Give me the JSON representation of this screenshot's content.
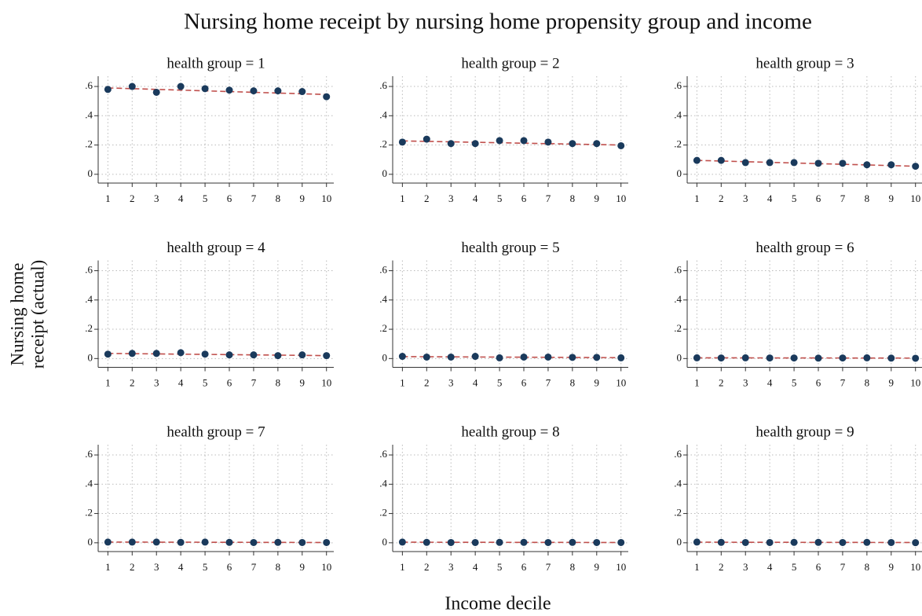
{
  "title": "Nursing home receipt by nursing home propensity group and income",
  "xlabel": "Income decile",
  "ylabel": [
    "Nursing home",
    "receipt (actual)"
  ],
  "chart_data": [
    {
      "type": "scatter",
      "title": "health group = 1",
      "x": [
        1,
        2,
        3,
        4,
        5,
        6,
        7,
        8,
        9,
        10
      ],
      "series": [
        {
          "color": "#1a3a5c",
          "marker": "circle",
          "values": [
            0.58,
            0.6,
            0.56,
            0.6,
            0.585,
            0.575,
            0.57,
            0.57,
            0.565,
            0.53
          ]
        },
        {
          "color": "#c0504d",
          "line": "dashed",
          "x": [
            1,
            10
          ],
          "values": [
            0.59,
            0.545
          ]
        }
      ],
      "xlim": [
        0.6,
        10.3
      ],
      "ylim": [
        -0.06,
        0.67
      ],
      "xticks": [
        1,
        2,
        3,
        4,
        5,
        6,
        7,
        8,
        9,
        10
      ],
      "yticks": [
        0,
        {
          "value": 0.2,
          "label": ".2"
        },
        {
          "value": 0.4,
          "label": ".4"
        },
        {
          "value": 0.6,
          "label": ".6"
        }
      ],
      "grid": true
    },
    {
      "type": "scatter",
      "title": "health group = 2",
      "x": [
        1,
        2,
        3,
        4,
        5,
        6,
        7,
        8,
        9,
        10
      ],
      "series": [
        {
          "color": "#1a3a5c",
          "marker": "circle",
          "values": [
            0.22,
            0.24,
            0.21,
            0.21,
            0.23,
            0.23,
            0.22,
            0.21,
            0.21,
            0.195
          ]
        },
        {
          "color": "#c0504d",
          "line": "dashed",
          "x": [
            1,
            10
          ],
          "values": [
            0.228,
            0.2
          ]
        }
      ],
      "xlim": [
        0.6,
        10.3
      ],
      "ylim": [
        -0.06,
        0.67
      ],
      "xticks": [
        1,
        2,
        3,
        4,
        5,
        6,
        7,
        8,
        9,
        10
      ],
      "yticks": [
        0,
        {
          "value": 0.2,
          "label": ".2"
        },
        {
          "value": 0.4,
          "label": ".4"
        },
        {
          "value": 0.6,
          "label": ".6"
        }
      ],
      "grid": true
    },
    {
      "type": "scatter",
      "title": "health group = 3",
      "x": [
        1,
        2,
        3,
        4,
        5,
        6,
        7,
        8,
        9,
        10
      ],
      "series": [
        {
          "color": "#1a3a5c",
          "marker": "circle",
          "values": [
            0.095,
            0.095,
            0.08,
            0.08,
            0.08,
            0.075,
            0.075,
            0.065,
            0.065,
            0.055
          ]
        },
        {
          "color": "#c0504d",
          "line": "dashed",
          "x": [
            1,
            10
          ],
          "values": [
            0.095,
            0.055
          ]
        }
      ],
      "xlim": [
        0.6,
        10.3
      ],
      "ylim": [
        -0.06,
        0.67
      ],
      "xticks": [
        1,
        2,
        3,
        4,
        5,
        6,
        7,
        8,
        9,
        10
      ],
      "yticks": [
        0,
        {
          "value": 0.2,
          "label": ".2"
        },
        {
          "value": 0.4,
          "label": ".4"
        },
        {
          "value": 0.6,
          "label": ".6"
        }
      ],
      "grid": true
    },
    {
      "type": "scatter",
      "title": "health group = 4",
      "x": [
        1,
        2,
        3,
        4,
        5,
        6,
        7,
        8,
        9,
        10
      ],
      "series": [
        {
          "color": "#1a3a5c",
          "marker": "circle",
          "values": [
            0.03,
            0.035,
            0.035,
            0.04,
            0.03,
            0.025,
            0.025,
            0.02,
            0.025,
            0.02
          ]
        },
        {
          "color": "#c0504d",
          "line": "dashed",
          "x": [
            1,
            10
          ],
          "values": [
            0.035,
            0.02
          ]
        }
      ],
      "xlim": [
        0.6,
        10.3
      ],
      "ylim": [
        -0.06,
        0.67
      ],
      "xticks": [
        1,
        2,
        3,
        4,
        5,
        6,
        7,
        8,
        9,
        10
      ],
      "yticks": [
        0,
        {
          "value": 0.2,
          "label": ".2"
        },
        {
          "value": 0.4,
          "label": ".4"
        },
        {
          "value": 0.6,
          "label": ".6"
        }
      ],
      "grid": true
    },
    {
      "type": "scatter",
      "title": "health group = 5",
      "x": [
        1,
        2,
        3,
        4,
        5,
        6,
        7,
        8,
        9,
        10
      ],
      "series": [
        {
          "color": "#1a3a5c",
          "marker": "circle",
          "values": [
            0.015,
            0.01,
            0.01,
            0.015,
            0.005,
            0.01,
            0.01,
            0.008,
            0.008,
            0.005
          ]
        },
        {
          "color": "#c0504d",
          "line": "dashed",
          "x": [
            1,
            10
          ],
          "values": [
            0.013,
            0.006
          ]
        }
      ],
      "xlim": [
        0.6,
        10.3
      ],
      "ylim": [
        -0.06,
        0.67
      ],
      "xticks": [
        1,
        2,
        3,
        4,
        5,
        6,
        7,
        8,
        9,
        10
      ],
      "yticks": [
        0,
        {
          "value": 0.2,
          "label": ".2"
        },
        {
          "value": 0.4,
          "label": ".4"
        },
        {
          "value": 0.6,
          "label": ".6"
        }
      ],
      "grid": true
    },
    {
      "type": "scatter",
      "title": "health group = 6",
      "x": [
        1,
        2,
        3,
        4,
        5,
        6,
        7,
        8,
        9,
        10
      ],
      "series": [
        {
          "color": "#1a3a5c",
          "marker": "circle",
          "values": [
            0.005,
            0.004,
            0.005,
            0.004,
            0.004,
            0.003,
            0.004,
            0.005,
            0.003,
            0.002
          ]
        },
        {
          "color": "#c0504d",
          "line": "dashed",
          "x": [
            1,
            10
          ],
          "values": [
            0.005,
            0.003
          ]
        }
      ],
      "xlim": [
        0.6,
        10.3
      ],
      "ylim": [
        -0.06,
        0.67
      ],
      "xticks": [
        1,
        2,
        3,
        4,
        5,
        6,
        7,
        8,
        9,
        10
      ],
      "yticks": [
        0,
        {
          "value": 0.2,
          "label": ".2"
        },
        {
          "value": 0.4,
          "label": ".4"
        },
        {
          "value": 0.6,
          "label": ".6"
        }
      ],
      "grid": true
    },
    {
      "type": "scatter",
      "title": "health group = 7",
      "x": [
        1,
        2,
        3,
        4,
        5,
        6,
        7,
        8,
        9,
        10
      ],
      "series": [
        {
          "color": "#1a3a5c",
          "marker": "circle",
          "values": [
            0.005,
            0.005,
            0.005,
            0.003,
            0.005,
            0.003,
            0.002,
            0.003,
            0.002,
            0.002
          ]
        },
        {
          "color": "#c0504d",
          "line": "dashed",
          "x": [
            1,
            10
          ],
          "values": [
            0.005,
            0.002
          ]
        }
      ],
      "xlim": [
        0.6,
        10.3
      ],
      "ylim": [
        -0.06,
        0.67
      ],
      "xticks": [
        1,
        2,
        3,
        4,
        5,
        6,
        7,
        8,
        9,
        10
      ],
      "yticks": [
        0,
        {
          "value": 0.2,
          "label": ".2"
        },
        {
          "value": 0.4,
          "label": ".4"
        },
        {
          "value": 0.6,
          "label": ".6"
        }
      ],
      "grid": true
    },
    {
      "type": "scatter",
      "title": "health group = 8",
      "x": [
        1,
        2,
        3,
        4,
        5,
        6,
        7,
        8,
        9,
        10
      ],
      "series": [
        {
          "color": "#1a3a5c",
          "marker": "circle",
          "values": [
            0.005,
            0.003,
            0.002,
            0.002,
            0.003,
            0.003,
            0.002,
            0.003,
            0.002,
            0.002
          ]
        },
        {
          "color": "#c0504d",
          "line": "dashed",
          "x": [
            1,
            10
          ],
          "values": [
            0.004,
            0.002
          ]
        }
      ],
      "xlim": [
        0.6,
        10.3
      ],
      "ylim": [
        -0.06,
        0.67
      ],
      "xticks": [
        1,
        2,
        3,
        4,
        5,
        6,
        7,
        8,
        9,
        10
      ],
      "yticks": [
        0,
        {
          "value": 0.2,
          "label": ".2"
        },
        {
          "value": 0.4,
          "label": ".4"
        },
        {
          "value": 0.6,
          "label": ".6"
        }
      ],
      "grid": true
    },
    {
      "type": "scatter",
      "title": "health group = 9",
      "x": [
        1,
        2,
        3,
        4,
        5,
        6,
        7,
        8,
        9,
        10
      ],
      "series": [
        {
          "color": "#1a3a5c",
          "marker": "circle",
          "values": [
            0.005,
            0.003,
            0.002,
            0.002,
            0.003,
            0.003,
            0.002,
            0.003,
            0.002,
            0.001
          ]
        },
        {
          "color": "#c0504d",
          "line": "dashed",
          "x": [
            1,
            10
          ],
          "values": [
            0.004,
            0.002
          ]
        }
      ],
      "xlim": [
        0.6,
        10.3
      ],
      "ylim": [
        -0.06,
        0.67
      ],
      "xticks": [
        1,
        2,
        3,
        4,
        5,
        6,
        7,
        8,
        9,
        10
      ],
      "yticks": [
        0,
        {
          "value": 0.2,
          "label": ".2"
        },
        {
          "value": 0.4,
          "label": ".4"
        },
        {
          "value": 0.6,
          "label": ".6"
        }
      ],
      "grid": true
    }
  ]
}
